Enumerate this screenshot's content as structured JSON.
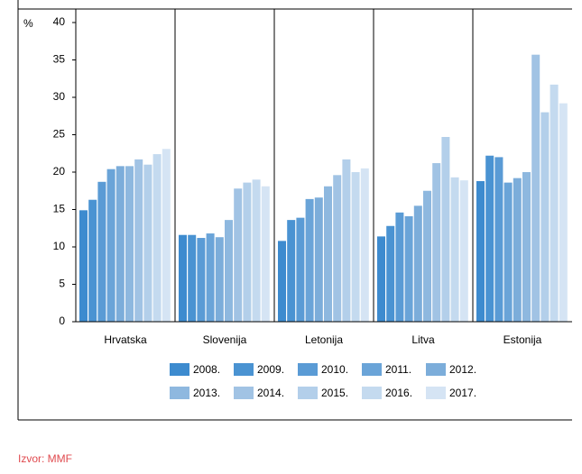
{
  "chart_data": {
    "type": "bar",
    "unit": "%",
    "source": "Izvor: MMF",
    "categories": [
      "Hrvatska",
      "Slovenija",
      "Letonija",
      "Litva",
      "Estonija"
    ],
    "series": [
      {
        "name": "2008.",
        "color": "#3d8bcf",
        "values": [
          14.9,
          11.6,
          10.8,
          11.4,
          18.8
        ]
      },
      {
        "name": "2009.",
        "color": "#4a93d2",
        "values": [
          16.3,
          11.6,
          13.6,
          12.8,
          22.2
        ]
      },
      {
        "name": "2010.",
        "color": "#5a9bd5",
        "values": [
          18.7,
          11.2,
          13.9,
          14.6,
          22.0
        ]
      },
      {
        "name": "2011.",
        "color": "#6aa4d8",
        "values": [
          20.4,
          11.8,
          16.4,
          14.1,
          18.6
        ]
      },
      {
        "name": "2012.",
        "color": "#7cadda",
        "values": [
          20.8,
          11.3,
          16.6,
          15.5,
          19.2
        ]
      },
      {
        "name": "2013.",
        "color": "#8eb8df",
        "values": [
          20.8,
          13.6,
          18.1,
          17.5,
          20.0
        ]
      },
      {
        "name": "2014.",
        "color": "#a1c3e4",
        "values": [
          21.7,
          17.8,
          19.6,
          21.2,
          35.7
        ]
      },
      {
        "name": "2015.",
        "color": "#b3cfea",
        "values": [
          21.0,
          18.6,
          21.7,
          24.7,
          28.0
        ]
      },
      {
        "name": "2016.",
        "color": "#c4daef",
        "values": [
          22.4,
          19.0,
          20.0,
          19.3,
          31.7
        ]
      },
      {
        "name": "2017.",
        "color": "#d5e4f4",
        "values": [
          23.1,
          18.1,
          20.5,
          18.9,
          29.2
        ]
      }
    ],
    "ylim": [
      0,
      40
    ],
    "yticks": [
      0,
      5,
      10,
      15,
      20,
      25,
      30,
      35,
      40
    ]
  }
}
